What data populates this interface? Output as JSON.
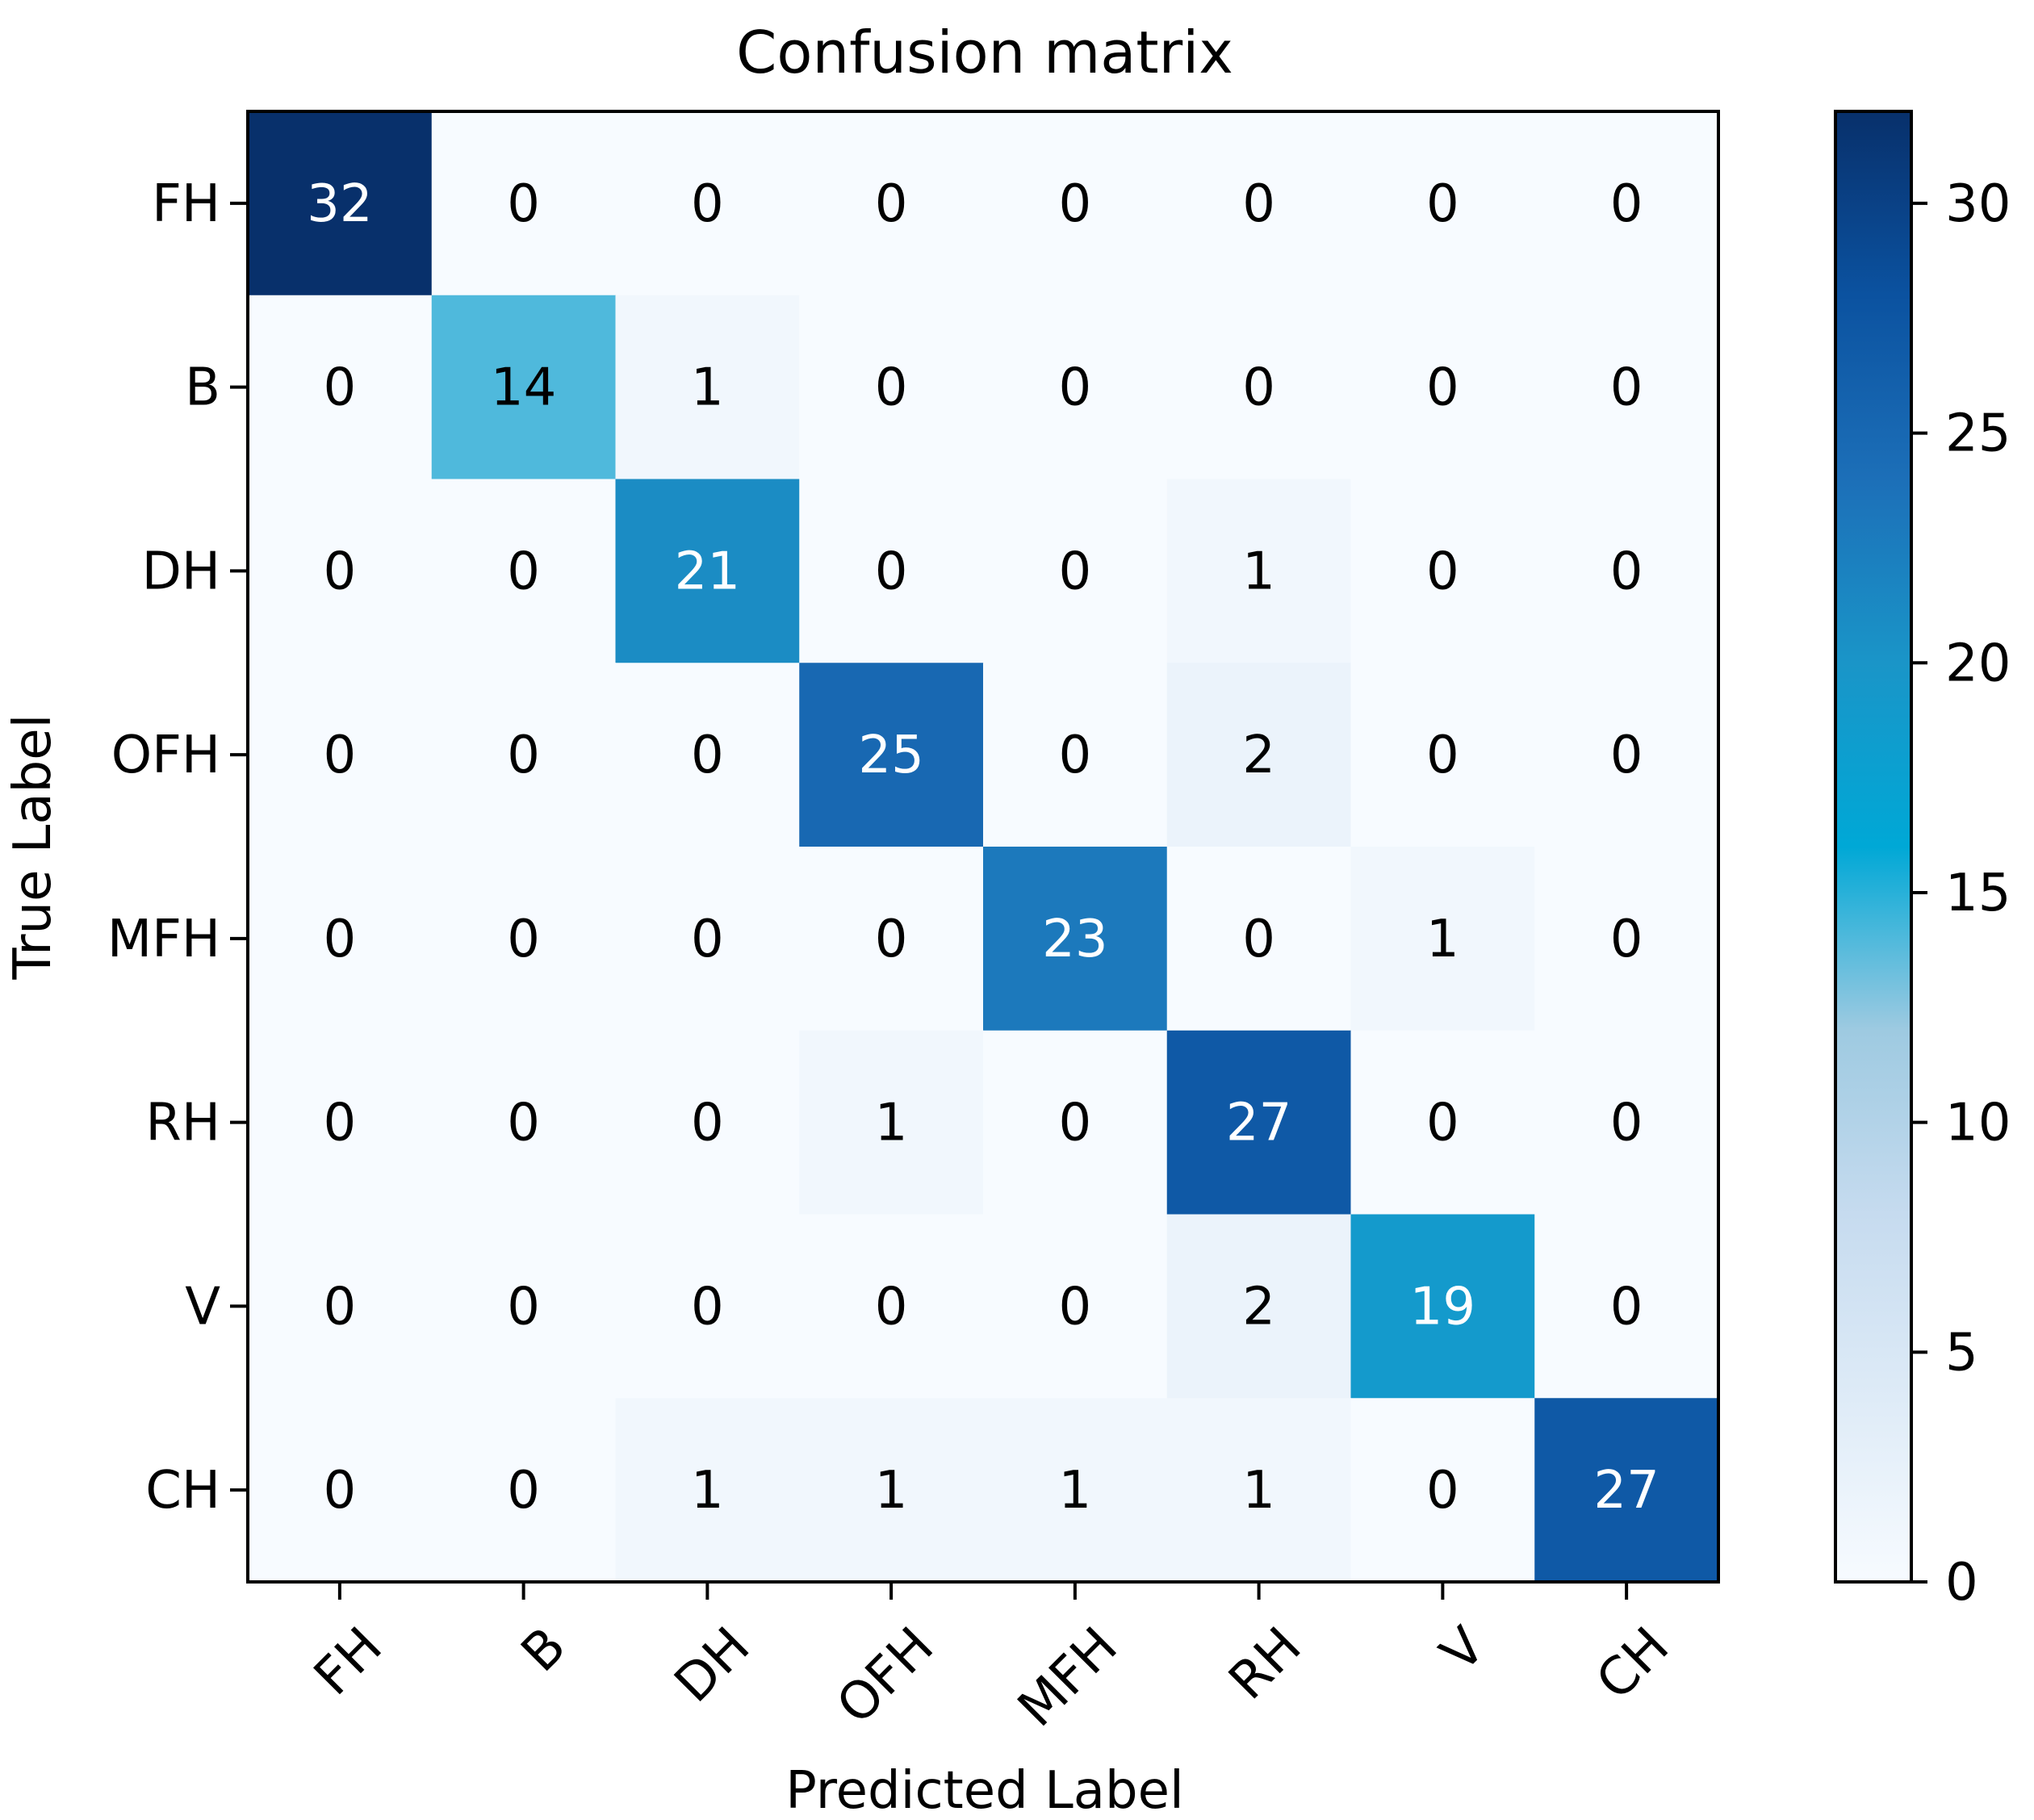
{
  "chart_data": {
    "type": "heatmap",
    "title": "Confusion matrix",
    "xlabel": "Predicted Label",
    "ylabel": "True Label",
    "x_categories": [
      "FH",
      "B",
      "DH",
      "OFH",
      "MFH",
      "RH",
      "V",
      "CH"
    ],
    "y_categories": [
      "FH",
      "B",
      "DH",
      "OFH",
      "MFH",
      "RH",
      "V",
      "CH"
    ],
    "matrix": [
      [
        32,
        0,
        0,
        0,
        0,
        0,
        0,
        0
      ],
      [
        0,
        14,
        1,
        0,
        0,
        0,
        0,
        0
      ],
      [
        0,
        0,
        21,
        0,
        0,
        1,
        0,
        0
      ],
      [
        0,
        0,
        0,
        25,
        0,
        2,
        0,
        0
      ],
      [
        0,
        0,
        0,
        0,
        23,
        0,
        1,
        0
      ],
      [
        0,
        0,
        0,
        1,
        0,
        27,
        0,
        0
      ],
      [
        0,
        0,
        0,
        0,
        0,
        2,
        19,
        0
      ],
      [
        0,
        0,
        1,
        1,
        1,
        1,
        0,
        27
      ]
    ],
    "colormap": "Blues",
    "colorbar": {
      "range": [
        0,
        32
      ],
      "ticks": [
        0,
        5,
        10,
        15,
        20,
        25,
        30
      ]
    }
  }
}
